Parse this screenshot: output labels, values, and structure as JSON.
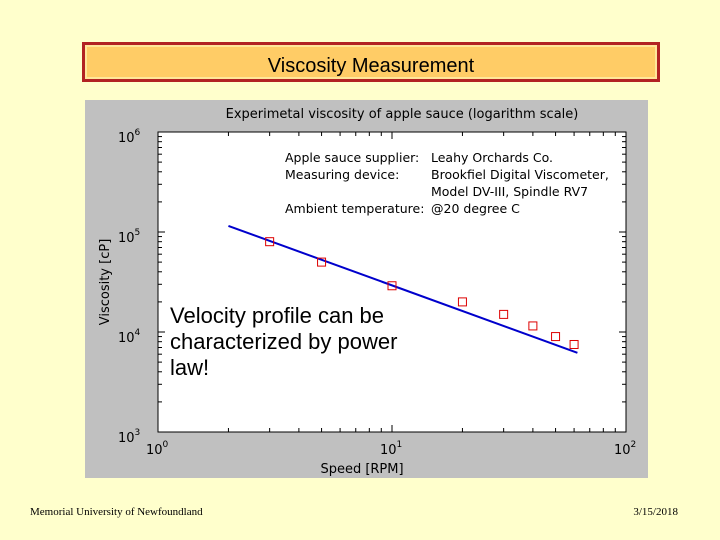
{
  "slide": {
    "title": "Viscosity Measurement",
    "note": "Velocity profile can be characterized by power law!",
    "footer_left": "Memorial University of Newfoundland",
    "footer_right": "3/15/2018"
  },
  "chart_data": {
    "type": "scatter",
    "title": "Experimetal viscosity of apple sauce (logarithm scale)",
    "xlabel": "Speed [RPM]",
    "ylabel": "Viscosity [cP]",
    "x_scale": "log",
    "y_scale": "log",
    "xlim": [
      1,
      100
    ],
    "ylim": [
      1000,
      1000000
    ],
    "x_ticks": [
      {
        "base": "10",
        "exp": "0",
        "value": 1
      },
      {
        "base": "10",
        "exp": "1",
        "value": 10
      },
      {
        "base": "10",
        "exp": "2",
        "value": 100
      }
    ],
    "y_ticks": [
      {
        "base": "10",
        "exp": "3",
        "value": 1000
      },
      {
        "base": "10",
        "exp": "4",
        "value": 10000
      },
      {
        "base": "10",
        "exp": "5",
        "value": 100000
      },
      {
        "base": "10",
        "exp": "6",
        "value": 1000000
      }
    ],
    "grid": false,
    "annotation": [
      {
        "label": "Apple sauce supplier:",
        "value": "Leahy Orchards Co."
      },
      {
        "label": "Measuring device:",
        "value": "Brookfiel Digital Viscometer,"
      },
      {
        "label": "",
        "value": "Model  DV-III, Spindle RV7"
      },
      {
        "label": "Ambient temperature:",
        "value": "@20 degree C"
      }
    ],
    "series": [
      {
        "marker": "square",
        "color": "#dd0000",
        "x": [
          3,
          5,
          10,
          20,
          30,
          40,
          50,
          60
        ],
        "y": [
          80000,
          50000,
          29000,
          20000,
          15000,
          11500,
          9000,
          7500
        ]
      },
      {
        "kind": "fit-line",
        "color": "#0000cc",
        "x": [
          2,
          62
        ],
        "y": [
          115000,
          6200
        ]
      }
    ],
    "colors": {
      "background": "#c0c0c0",
      "axes": "#ffffff",
      "marker": "#dd0000",
      "fit": "#0000cc"
    }
  }
}
